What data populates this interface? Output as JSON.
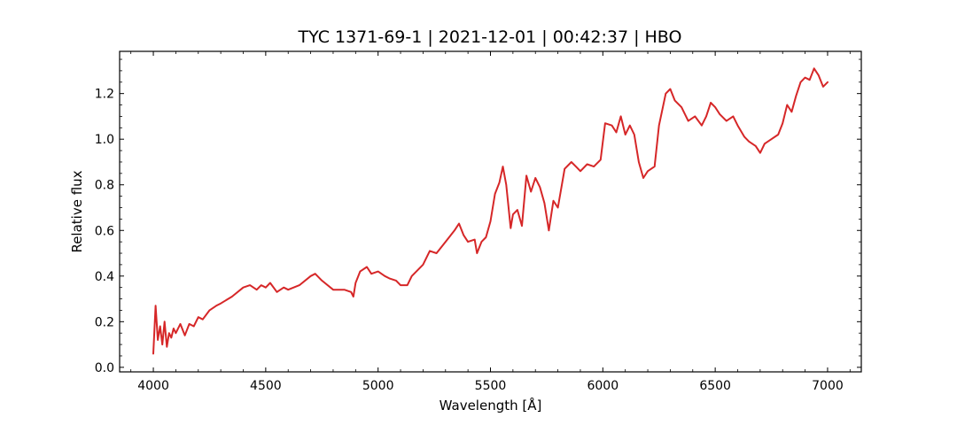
{
  "chart_data": {
    "type": "line",
    "title": "TYC 1371-69-1 | 2021-12-01 | 00:42:37 | HBO",
    "xlabel": "Wavelength [Å]",
    "ylabel": "Relative flux",
    "xlim": [
      3850,
      7150
    ],
    "ylim": [
      -0.02,
      1.385
    ],
    "x_ticks": [
      4000,
      4500,
      5000,
      5500,
      6000,
      6500,
      7000
    ],
    "y_ticks": [
      0.0,
      0.2,
      0.4,
      0.6,
      0.8,
      1.0,
      1.2
    ],
    "x_tick_labels": [
      "4000",
      "4500",
      "5000",
      "5500",
      "6000",
      "6500",
      "7000"
    ],
    "y_tick_labels": [
      "0.0",
      "0.2",
      "0.4",
      "0.6",
      "0.8",
      "1.0",
      "1.2"
    ],
    "grid": false,
    "series": [
      {
        "color": "#d62728",
        "x": [
          4000,
          4010,
          4020,
          4030,
          4040,
          4050,
          4060,
          4070,
          4080,
          4090,
          4100,
          4120,
          4140,
          4160,
          4180,
          4200,
          4220,
          4250,
          4280,
          4300,
          4350,
          4400,
          4430,
          4460,
          4480,
          4500,
          4520,
          4550,
          4580,
          4600,
          4650,
          4700,
          4720,
          4750,
          4800,
          4850,
          4880,
          4890,
          4900,
          4920,
          4950,
          4970,
          5000,
          5030,
          5050,
          5080,
          5100,
          5130,
          5150,
          5200,
          5230,
          5260,
          5300,
          5340,
          5360,
          5380,
          5400,
          5430,
          5440,
          5460,
          5480,
          5500,
          5520,
          5540,
          5555,
          5570,
          5590,
          5600,
          5620,
          5640,
          5660,
          5680,
          5700,
          5720,
          5740,
          5760,
          5780,
          5800,
          5830,
          5860,
          5880,
          5900,
          5930,
          5960,
          5990,
          6010,
          6040,
          6060,
          6080,
          6100,
          6120,
          6140,
          6160,
          6180,
          6200,
          6230,
          6250,
          6280,
          6300,
          6320,
          6350,
          6380,
          6410,
          6440,
          6460,
          6480,
          6500,
          6520,
          6550,
          6580,
          6600,
          6630,
          6650,
          6680,
          6700,
          6720,
          6750,
          6780,
          6800,
          6820,
          6840,
          6860,
          6880,
          6900,
          6920,
          6940,
          6960,
          6980,
          7000
        ],
        "y": [
          0.06,
          0.27,
          0.12,
          0.18,
          0.1,
          0.2,
          0.09,
          0.15,
          0.13,
          0.17,
          0.15,
          0.19,
          0.14,
          0.19,
          0.18,
          0.22,
          0.21,
          0.25,
          0.27,
          0.28,
          0.31,
          0.35,
          0.36,
          0.34,
          0.36,
          0.35,
          0.37,
          0.33,
          0.35,
          0.34,
          0.36,
          0.4,
          0.41,
          0.38,
          0.34,
          0.34,
          0.33,
          0.31,
          0.37,
          0.42,
          0.44,
          0.41,
          0.42,
          0.4,
          0.39,
          0.38,
          0.36,
          0.36,
          0.4,
          0.45,
          0.51,
          0.5,
          0.55,
          0.6,
          0.63,
          0.58,
          0.55,
          0.56,
          0.5,
          0.55,
          0.57,
          0.64,
          0.76,
          0.81,
          0.88,
          0.8,
          0.61,
          0.67,
          0.69,
          0.62,
          0.84,
          0.77,
          0.83,
          0.79,
          0.72,
          0.6,
          0.73,
          0.7,
          0.87,
          0.9,
          0.88,
          0.86,
          0.89,
          0.88,
          0.91,
          1.07,
          1.06,
          1.03,
          1.1,
          1.02,
          1.06,
          1.02,
          0.9,
          0.83,
          0.86,
          0.88,
          1.06,
          1.2,
          1.22,
          1.17,
          1.14,
          1.08,
          1.1,
          1.06,
          1.1,
          1.16,
          1.14,
          1.11,
          1.08,
          1.1,
          1.06,
          1.01,
          0.99,
          0.97,
          0.94,
          0.98,
          1.0,
          1.02,
          1.07,
          1.15,
          1.12,
          1.19,
          1.25,
          1.27,
          1.26,
          1.31,
          1.28,
          1.23,
          1.25
        ]
      }
    ]
  }
}
